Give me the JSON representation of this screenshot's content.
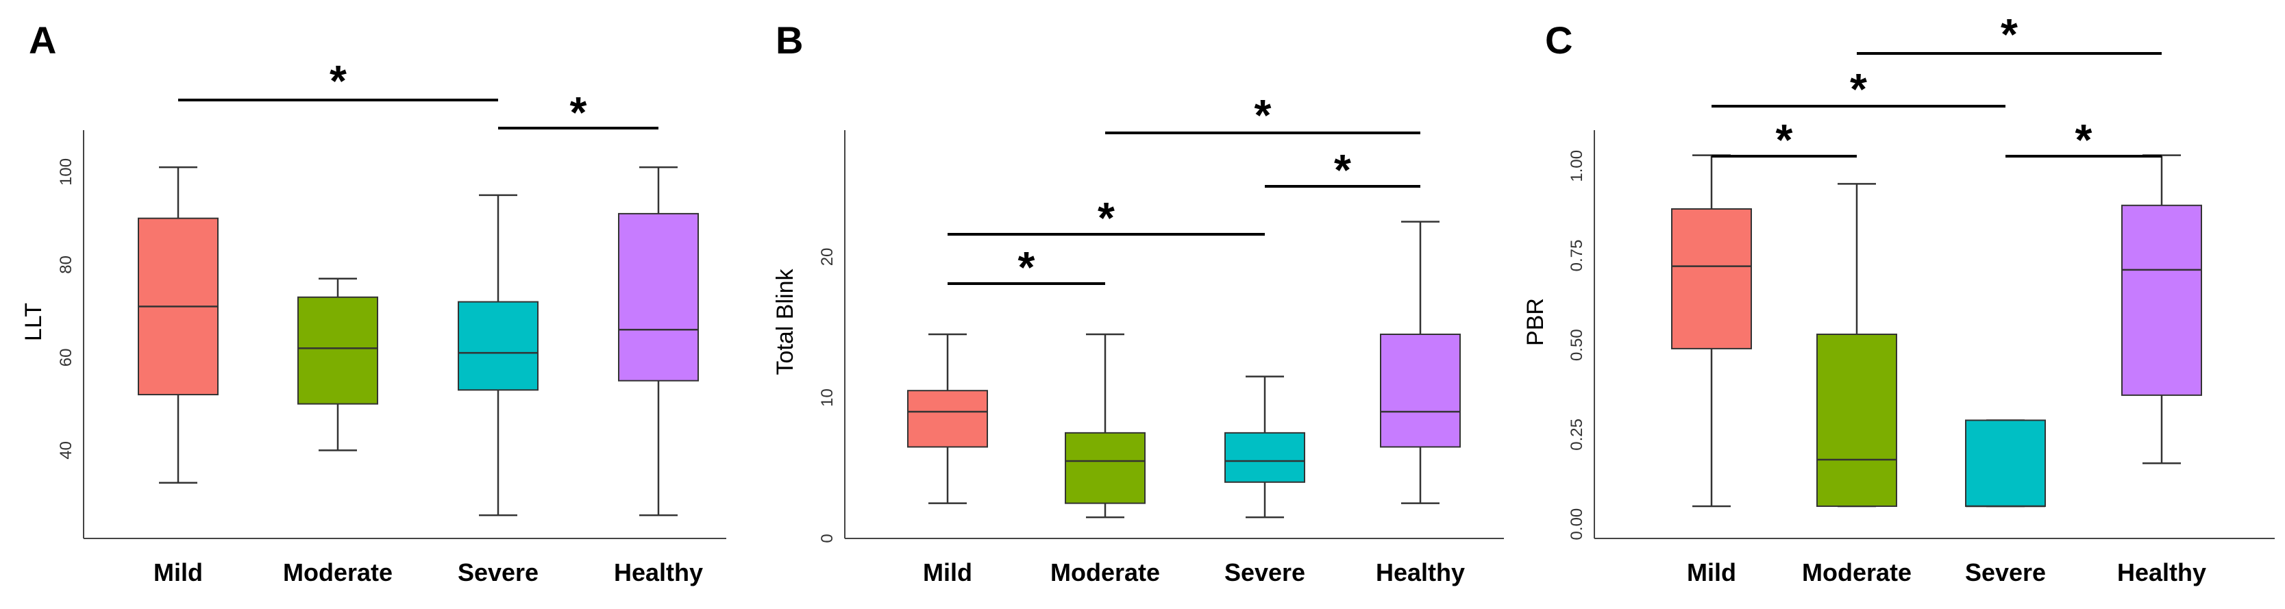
{
  "chart_data": [
    {
      "panel": "A",
      "type": "box",
      "xlabel": "",
      "ylabel": "LLT",
      "yticks": [
        40,
        60,
        80,
        100
      ],
      "ylim": [
        21,
        109
      ],
      "categories": [
        "Mild",
        "Moderate",
        "Severe",
        "Healthy"
      ],
      "series": [
        {
          "category": "Mild",
          "color": "#F8766D",
          "min": 33,
          "q1": 52,
          "median": 71,
          "q3": 90,
          "max": 101
        },
        {
          "category": "Moderate",
          "color": "#7CAE00",
          "min": 40,
          "q1": 50,
          "median": 62,
          "q3": 73,
          "max": 77
        },
        {
          "category": "Severe",
          "color": "#00BFC4",
          "min": 26,
          "q1": 53,
          "median": 61,
          "q3": 72,
          "max": 95
        },
        {
          "category": "Healthy",
          "color": "#C77CFF",
          "min": 26,
          "q1": 55,
          "median": 66,
          "q3": 91,
          "max": 101
        }
      ],
      "significance": [
        {
          "from": "Mild",
          "to": "Severe",
          "label": "*"
        },
        {
          "from": "Severe",
          "to": "Healthy",
          "label": "*"
        }
      ]
    },
    {
      "panel": "B",
      "type": "box",
      "xlabel": "",
      "ylabel": "Total Blink",
      "yticks": [
        0,
        10,
        20
      ],
      "ylim": [
        0,
        29
      ],
      "categories": [
        "Mild",
        "Moderate",
        "Severe",
        "Healthy"
      ],
      "series": [
        {
          "category": "Mild",
          "color": "#F8766D",
          "min": 2.5,
          "q1": 6.5,
          "median": 9,
          "q3": 10.5,
          "max": 14.5
        },
        {
          "category": "Moderate",
          "color": "#7CAE00",
          "min": 1.5,
          "q1": 2.5,
          "median": 5.5,
          "q3": 7.5,
          "max": 14.5
        },
        {
          "category": "Severe",
          "color": "#00BFC4",
          "min": 1.5,
          "q1": 4,
          "median": 5.5,
          "q3": 7.5,
          "max": 11.5
        },
        {
          "category": "Healthy",
          "color": "#C77CFF",
          "min": 2.5,
          "q1": 6.5,
          "median": 9,
          "q3": 14.5,
          "max": 22.5
        }
      ],
      "significance": [
        {
          "from": "Mild",
          "to": "Moderate",
          "label": "*"
        },
        {
          "from": "Mild",
          "to": "Severe",
          "label": "*"
        },
        {
          "from": "Severe",
          "to": "Healthy",
          "label": "*"
        },
        {
          "from": "Moderate",
          "to": "Healthy",
          "label": "*"
        }
      ]
    },
    {
      "panel": "C",
      "type": "box",
      "xlabel": "",
      "ylabel": "PBR",
      "yticks": [
        "0.00",
        "0.25",
        "0.50",
        "0.75",
        "1.00"
      ],
      "ylim": [
        -0.04,
        1.1
      ],
      "categories": [
        "Mild",
        "Moderate",
        "Severe",
        "Healthy"
      ],
      "series": [
        {
          "category": "Mild",
          "color": "#F8766D",
          "min": 0.05,
          "q1": 0.49,
          "median": 0.72,
          "q3": 0.88,
          "max": 1.03
        },
        {
          "category": "Moderate",
          "color": "#7CAE00",
          "min": 0.05,
          "q1": 0.05,
          "median": 0.18,
          "q3": 0.53,
          "max": 0.95
        },
        {
          "category": "Severe",
          "color": "#00BFC4",
          "min": 0.05,
          "q1": 0.05,
          "median": 0.05,
          "q3": 0.29,
          "max": 0.29
        },
        {
          "category": "Healthy",
          "color": "#C77CFF",
          "min": 0.17,
          "q1": 0.36,
          "median": 0.71,
          "q3": 0.89,
          "max": 1.03
        }
      ],
      "significance": [
        {
          "from": "Mild",
          "to": "Moderate",
          "label": "*"
        },
        {
          "from": "Severe",
          "to": "Healthy",
          "label": "*"
        },
        {
          "from": "Mild",
          "to": "Severe",
          "label": "*"
        },
        {
          "from": "Moderate",
          "to": "Healthy",
          "label": "*"
        }
      ]
    }
  ]
}
